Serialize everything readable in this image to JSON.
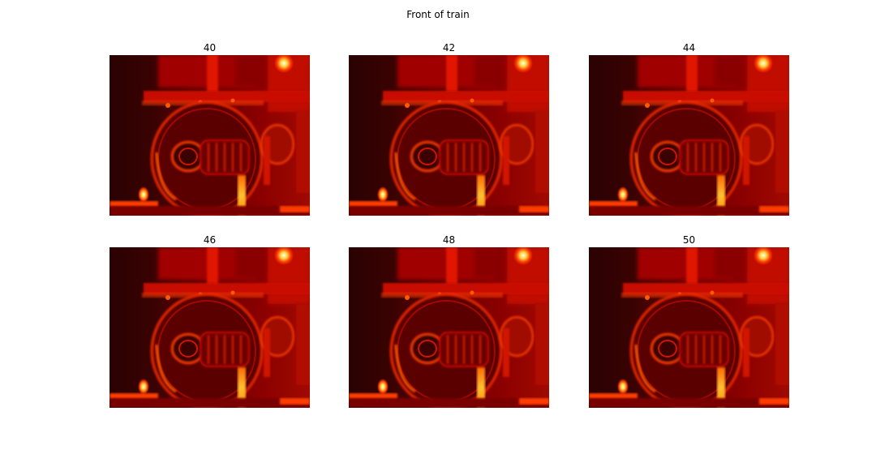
{
  "figure": {
    "title": "Front of train",
    "colormap": [
      "#1a0000",
      "#3a0000",
      "#8a0000",
      "#d11400",
      "#ff3c00",
      "#ffd040",
      "#ffffe0"
    ],
    "panels": [
      {
        "label": "40"
      },
      {
        "label": "42"
      },
      {
        "label": "44"
      },
      {
        "label": "46"
      },
      {
        "label": "48"
      },
      {
        "label": "50"
      }
    ]
  }
}
